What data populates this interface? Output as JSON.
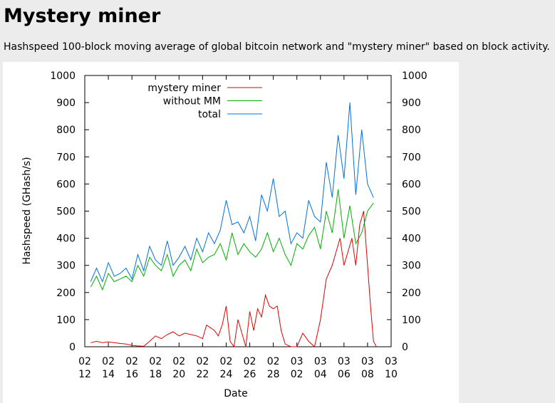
{
  "page": {
    "title": "Mystery miner",
    "subtitle": "Hashspeed 100-block moving average of global bitcoin network and \"mystery miner\" based on block activity."
  },
  "chart_data": {
    "type": "line",
    "title": "",
    "xlabel": "Date",
    "ylabel": "Hashspeed (GHash/s)",
    "xlim": [
      "2013-02-12",
      "2013-03-10"
    ],
    "ylim": [
      0,
      1000
    ],
    "yticks": [
      0,
      100,
      200,
      300,
      400,
      500,
      600,
      700,
      800,
      900,
      1000
    ],
    "y2ticks": [
      0,
      100,
      200,
      300,
      400,
      500,
      600,
      700,
      800,
      900,
      1000
    ],
    "xticks": [
      {
        "month": "02",
        "day": "12"
      },
      {
        "month": "02",
        "day": "14"
      },
      {
        "month": "02",
        "day": "16"
      },
      {
        "month": "02",
        "day": "18"
      },
      {
        "month": "02",
        "day": "20"
      },
      {
        "month": "02",
        "day": "22"
      },
      {
        "month": "02",
        "day": "24"
      },
      {
        "month": "02",
        "day": "26"
      },
      {
        "month": "02",
        "day": "28"
      },
      {
        "month": "03",
        "day": "02"
      },
      {
        "month": "03",
        "day": "04"
      },
      {
        "month": "03",
        "day": "06"
      },
      {
        "month": "03",
        "day": "08"
      },
      {
        "month": "03",
        "day": "10"
      }
    ],
    "legend": "top-left",
    "grid": false,
    "series": [
      {
        "name": "mystery miner",
        "color": "#e00000",
        "x": [
          "2013-02-12 12:00",
          "2013-02-13 00:00",
          "2013-02-13 12:00",
          "2013-02-14 00:00",
          "2013-02-14 12:00",
          "2013-02-15 00:00",
          "2013-02-15 12:00",
          "2013-02-16 00:00",
          "2013-02-16 12:00",
          "2013-02-17 00:00",
          "2013-02-17 12:00",
          "2013-02-18 00:00",
          "2013-02-18 12:00",
          "2013-02-19 00:00",
          "2013-02-19 12:00",
          "2013-02-20 00:00",
          "2013-02-20 12:00",
          "2013-02-21 00:00",
          "2013-02-21 12:00",
          "2013-02-22 00:00",
          "2013-02-22 08:00",
          "2013-02-22 16:00",
          "2013-02-23 00:00",
          "2013-02-23 08:00",
          "2013-02-23 16:00",
          "2013-02-24 00:00",
          "2013-02-24 08:00",
          "2013-02-24 16:00",
          "2013-02-25 00:00",
          "2013-02-25 08:00",
          "2013-02-25 16:00",
          "2013-02-26 00:00",
          "2013-02-26 08:00",
          "2013-02-26 16:00",
          "2013-02-27 00:00",
          "2013-02-27 08:00",
          "2013-02-27 16:00",
          "2013-02-28 00:00",
          "2013-02-28 08:00",
          "2013-02-28 16:00",
          "2013-03-01 00:00",
          "2013-03-01 12:00",
          "2013-03-02 00:00",
          "2013-03-02 12:00",
          "2013-03-03 00:00",
          "2013-03-03 12:00",
          "2013-03-04 00:00",
          "2013-03-04 12:00",
          "2013-03-05 00:00",
          "2013-03-05 08:00",
          "2013-03-05 16:00",
          "2013-03-06 00:00",
          "2013-03-06 08:00",
          "2013-03-06 16:00",
          "2013-03-07 00:00",
          "2013-03-07 08:00",
          "2013-03-07 16:00",
          "2013-03-08 00:00",
          "2013-03-08 06:00",
          "2013-03-08 12:00",
          "2013-03-08 18:00"
        ],
        "values": [
          15,
          20,
          15,
          18,
          15,
          12,
          10,
          5,
          3,
          2,
          20,
          40,
          30,
          45,
          55,
          40,
          50,
          45,
          40,
          30,
          80,
          70,
          60,
          40,
          80,
          150,
          20,
          0,
          100,
          50,
          0,
          130,
          60,
          140,
          110,
          190,
          150,
          140,
          150,
          60,
          10,
          0,
          0,
          50,
          20,
          0,
          100,
          250,
          300,
          350,
          400,
          300,
          350,
          400,
          300,
          450,
          500,
          300,
          150,
          20,
          0
        ]
      },
      {
        "name": "without MM",
        "color": "#00b000",
        "x": [
          "2013-02-12 12:00",
          "2013-02-13 00:00",
          "2013-02-13 12:00",
          "2013-02-14 00:00",
          "2013-02-14 12:00",
          "2013-02-15 00:00",
          "2013-02-15 12:00",
          "2013-02-16 00:00",
          "2013-02-16 12:00",
          "2013-02-17 00:00",
          "2013-02-17 12:00",
          "2013-02-18 00:00",
          "2013-02-18 12:00",
          "2013-02-19 00:00",
          "2013-02-19 12:00",
          "2013-02-20 00:00",
          "2013-02-20 12:00",
          "2013-02-21 00:00",
          "2013-02-21 12:00",
          "2013-02-22 00:00",
          "2013-02-22 12:00",
          "2013-02-23 00:00",
          "2013-02-23 12:00",
          "2013-02-24 00:00",
          "2013-02-24 12:00",
          "2013-02-25 00:00",
          "2013-02-25 12:00",
          "2013-02-26 00:00",
          "2013-02-26 12:00",
          "2013-02-27 00:00",
          "2013-02-27 12:00",
          "2013-02-28 00:00",
          "2013-02-28 12:00",
          "2013-03-01 00:00",
          "2013-03-01 12:00",
          "2013-03-02 00:00",
          "2013-03-02 12:00",
          "2013-03-03 00:00",
          "2013-03-03 12:00",
          "2013-03-04 00:00",
          "2013-03-04 12:00",
          "2013-03-05 00:00",
          "2013-03-05 12:00",
          "2013-03-06 00:00",
          "2013-03-06 12:00",
          "2013-03-07 00:00",
          "2013-03-07 12:00",
          "2013-03-08 00:00",
          "2013-03-08 12:00"
        ],
        "values": [
          220,
          260,
          210,
          270,
          240,
          250,
          260,
          240,
          300,
          260,
          330,
          300,
          280,
          340,
          260,
          300,
          320,
          280,
          360,
          310,
          330,
          340,
          380,
          320,
          420,
          340,
          380,
          350,
          330,
          360,
          420,
          350,
          400,
          340,
          300,
          380,
          360,
          410,
          440,
          360,
          500,
          420,
          580,
          400,
          520,
          380,
          420,
          500,
          530
        ]
      },
      {
        "name": "total",
        "color": "#0070e0",
        "x": [
          "2013-02-12 12:00",
          "2013-02-13 00:00",
          "2013-02-13 12:00",
          "2013-02-14 00:00",
          "2013-02-14 12:00",
          "2013-02-15 00:00",
          "2013-02-15 12:00",
          "2013-02-16 00:00",
          "2013-02-16 12:00",
          "2013-02-17 00:00",
          "2013-02-17 12:00",
          "2013-02-18 00:00",
          "2013-02-18 12:00",
          "2013-02-19 00:00",
          "2013-02-19 12:00",
          "2013-02-20 00:00",
          "2013-02-20 12:00",
          "2013-02-21 00:00",
          "2013-02-21 12:00",
          "2013-02-22 00:00",
          "2013-02-22 12:00",
          "2013-02-23 00:00",
          "2013-02-23 12:00",
          "2013-02-24 00:00",
          "2013-02-24 12:00",
          "2013-02-25 00:00",
          "2013-02-25 12:00",
          "2013-02-26 00:00",
          "2013-02-26 12:00",
          "2013-02-27 00:00",
          "2013-02-27 12:00",
          "2013-02-28 00:00",
          "2013-02-28 12:00",
          "2013-03-01 00:00",
          "2013-03-01 12:00",
          "2013-03-02 00:00",
          "2013-03-02 12:00",
          "2013-03-03 00:00",
          "2013-03-03 12:00",
          "2013-03-04 00:00",
          "2013-03-04 12:00",
          "2013-03-05 00:00",
          "2013-03-05 12:00",
          "2013-03-06 00:00",
          "2013-03-06 12:00",
          "2013-03-07 00:00",
          "2013-03-07 12:00",
          "2013-03-08 00:00",
          "2013-03-08 12:00"
        ],
        "values": [
          240,
          290,
          240,
          310,
          260,
          270,
          290,
          250,
          340,
          280,
          370,
          320,
          300,
          390,
          300,
          330,
          370,
          320,
          400,
          350,
          420,
          380,
          430,
          540,
          450,
          460,
          420,
          480,
          390,
          560,
          500,
          620,
          480,
          500,
          380,
          420,
          400,
          540,
          480,
          460,
          680,
          550,
          780,
          620,
          900,
          560,
          800,
          600,
          550
        ]
      }
    ]
  }
}
